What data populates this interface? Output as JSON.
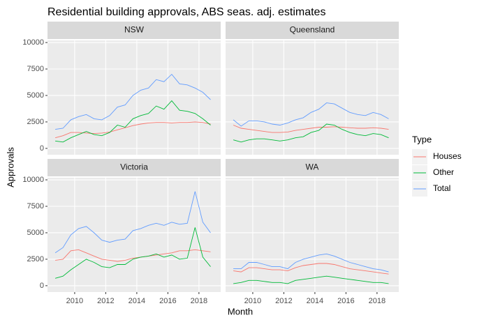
{
  "title": "Residential building approvals, ABS seas. adj. estimates",
  "x_label": "Month",
  "y_label": "Approvals",
  "legend_title": "Type",
  "chart_data": [
    {
      "type": "line",
      "title": "NSW",
      "x": [
        2008.75,
        2009.25,
        2009.75,
        2010.25,
        2010.75,
        2011.25,
        2011.75,
        2012.25,
        2012.75,
        2013.25,
        2013.75,
        2014.25,
        2014.75,
        2015.25,
        2015.75,
        2016.25,
        2016.75,
        2017.25,
        2017.75,
        2018.25,
        2018.75
      ],
      "xlim": [
        2008.25,
        2019.4
      ],
      "ylim": [
        -600,
        10200
      ],
      "xticks": [
        2010,
        2012,
        2014,
        2016,
        2018
      ],
      "yticks": [
        0,
        2500,
        5000,
        7500,
        10000
      ],
      "series": [
        {
          "name": "Houses",
          "color": "#F8766D",
          "values": [
            1000,
            1200,
            1500,
            1500,
            1450,
            1400,
            1450,
            1550,
            1750,
            1950,
            2150,
            2300,
            2400,
            2450,
            2450,
            2400,
            2450,
            2450,
            2500,
            2450,
            2300
          ]
        },
        {
          "name": "Other",
          "color": "#00BA38",
          "values": [
            700,
            600,
            1000,
            1300,
            1600,
            1300,
            1200,
            1500,
            2200,
            2000,
            2800,
            3100,
            3300,
            4000,
            3700,
            4500,
            3600,
            3500,
            3300,
            2800,
            2200
          ]
        },
        {
          "name": "Total",
          "color": "#619CFF",
          "values": [
            1800,
            1900,
            2700,
            3000,
            3200,
            2800,
            2700,
            3100,
            3900,
            4100,
            5000,
            5500,
            5700,
            6500,
            6300,
            7000,
            6100,
            6000,
            5700,
            5300,
            4600
          ]
        }
      ]
    },
    {
      "type": "line",
      "title": "Queensland",
      "x": [
        2008.75,
        2009.25,
        2009.75,
        2010.25,
        2010.75,
        2011.25,
        2011.75,
        2012.25,
        2012.75,
        2013.25,
        2013.75,
        2014.25,
        2014.75,
        2015.25,
        2015.75,
        2016.25,
        2016.75,
        2017.25,
        2017.75,
        2018.25,
        2018.75
      ],
      "xlim": [
        2008.25,
        2019.4
      ],
      "ylim": [
        -600,
        10200
      ],
      "xticks": [
        2010,
        2012,
        2014,
        2016,
        2018
      ],
      "yticks": [
        0,
        2500,
        5000,
        7500,
        10000
      ],
      "series": [
        {
          "name": "Houses",
          "color": "#F8766D",
          "values": [
            2200,
            1900,
            1800,
            1700,
            1600,
            1500,
            1500,
            1550,
            1700,
            1800,
            1900,
            2000,
            2000,
            2050,
            2000,
            1950,
            1900,
            1900,
            1950,
            1900,
            1800
          ]
        },
        {
          "name": "Other",
          "color": "#00BA38",
          "values": [
            800,
            600,
            800,
            900,
            900,
            800,
            700,
            800,
            1000,
            1100,
            1500,
            1700,
            2300,
            2200,
            1800,
            1500,
            1300,
            1200,
            1400,
            1300,
            1000
          ]
        },
        {
          "name": "Total",
          "color": "#619CFF",
          "values": [
            2700,
            2100,
            2600,
            2600,
            2500,
            2300,
            2200,
            2400,
            2700,
            2900,
            3400,
            3700,
            4300,
            4200,
            3800,
            3400,
            3200,
            3100,
            3400,
            3200,
            2800
          ]
        }
      ]
    },
    {
      "type": "line",
      "title": "Victoria",
      "x": [
        2008.75,
        2009.25,
        2009.75,
        2010.25,
        2010.75,
        2011.25,
        2011.75,
        2012.25,
        2012.75,
        2013.25,
        2013.75,
        2014.25,
        2014.75,
        2015.25,
        2015.75,
        2016.25,
        2016.75,
        2017.25,
        2017.75,
        2018.25,
        2018.75
      ],
      "xlim": [
        2008.25,
        2019.4
      ],
      "ylim": [
        -600,
        10200
      ],
      "xticks": [
        2010,
        2012,
        2014,
        2016,
        2018
      ],
      "yticks": [
        0,
        2500,
        5000,
        7500,
        10000
      ],
      "series": [
        {
          "name": "Houses",
          "color": "#F8766D",
          "values": [
            2400,
            2500,
            3300,
            3400,
            3100,
            2800,
            2500,
            2400,
            2300,
            2400,
            2600,
            2700,
            2800,
            2900,
            3000,
            3100,
            3300,
            3300,
            3400,
            3300,
            3200
          ]
        },
        {
          "name": "Other",
          "color": "#00BA38",
          "values": [
            700,
            900,
            1500,
            2000,
            2500,
            2200,
            1800,
            1700,
            2000,
            2000,
            2500,
            2700,
            2800,
            3000,
            2700,
            2900,
            2500,
            2600,
            5500,
            2700,
            1800
          ]
        },
        {
          "name": "Total",
          "color": "#619CFF",
          "values": [
            3100,
            3600,
            4800,
            5400,
            5600,
            5000,
            4300,
            4100,
            4300,
            4400,
            5200,
            5400,
            5700,
            5900,
            5700,
            6000,
            5800,
            5900,
            8900,
            6000,
            5000
          ]
        }
      ]
    },
    {
      "type": "line",
      "title": "WA",
      "x": [
        2008.75,
        2009.25,
        2009.75,
        2010.25,
        2010.75,
        2011.25,
        2011.75,
        2012.25,
        2012.75,
        2013.25,
        2013.75,
        2014.25,
        2014.75,
        2015.25,
        2015.75,
        2016.25,
        2016.75,
        2017.25,
        2017.75,
        2018.25,
        2018.75
      ],
      "xlim": [
        2008.25,
        2019.4
      ],
      "ylim": [
        -600,
        10200
      ],
      "xticks": [
        2010,
        2012,
        2014,
        2016,
        2018
      ],
      "yticks": [
        0,
        2500,
        5000,
        7500,
        10000
      ],
      "series": [
        {
          "name": "Houses",
          "color": "#F8766D",
          "values": [
            1400,
            1300,
            1700,
            1700,
            1600,
            1500,
            1500,
            1400,
            1700,
            1900,
            2000,
            2100,
            2100,
            2000,
            1800,
            1600,
            1500,
            1400,
            1300,
            1200,
            1100
          ]
        },
        {
          "name": "Other",
          "color": "#00BA38",
          "values": [
            200,
            300,
            500,
            500,
            400,
            300,
            300,
            200,
            500,
            600,
            700,
            800,
            900,
            800,
            700,
            600,
            500,
            400,
            300,
            300,
            200
          ]
        },
        {
          "name": "Total",
          "color": "#619CFF",
          "values": [
            1600,
            1600,
            2200,
            2200,
            2000,
            1800,
            1800,
            1600,
            2200,
            2500,
            2700,
            2900,
            3000,
            2800,
            2500,
            2200,
            2000,
            1800,
            1600,
            1500,
            1300
          ]
        }
      ]
    }
  ]
}
